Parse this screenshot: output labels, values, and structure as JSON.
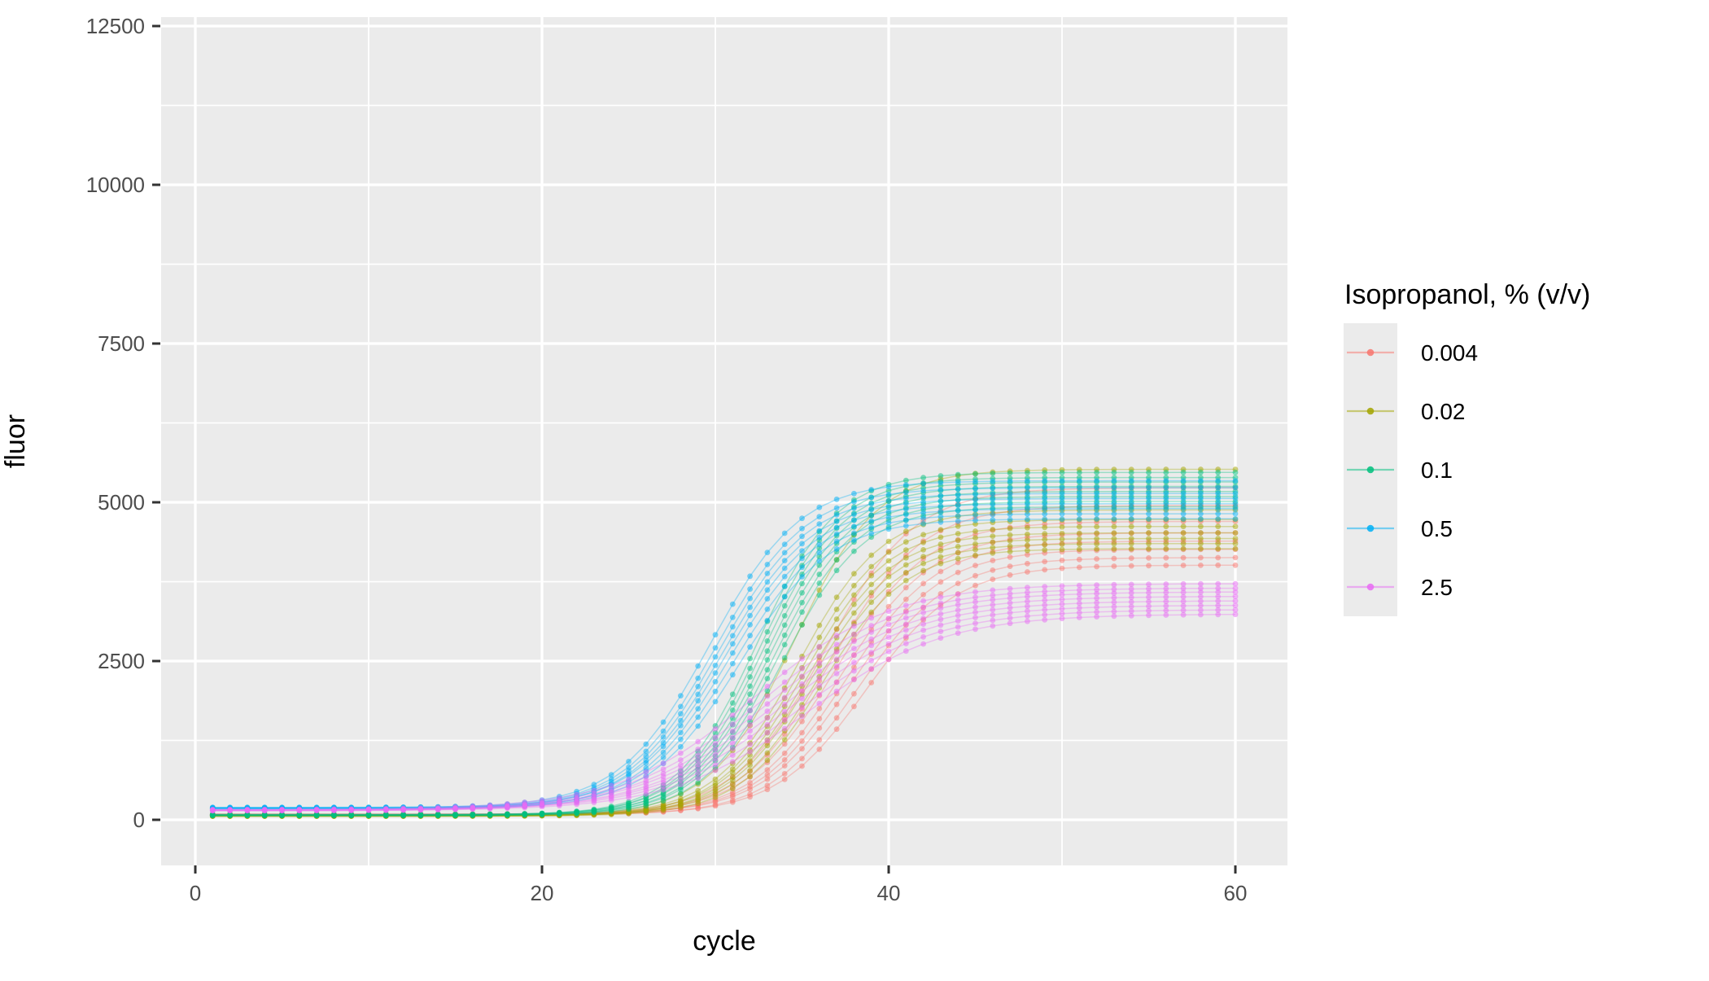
{
  "chart_data": {
    "type": "line",
    "title": "",
    "xlabel": "cycle",
    "ylabel": "fluor",
    "legend_title": "Isopropanol, % (v/v)",
    "legend_position": "right",
    "grid": "white major and minor gridlines on grey panel",
    "panel_color": "#EBEBEB",
    "grid_color": "#FFFFFF",
    "tick_color": "#333333",
    "tick_label_color": "#4D4D4D",
    "x_range": [
      1,
      60
    ],
    "xlim": [
      -1.95,
      62.95
    ],
    "ylim": [
      -700,
      12640
    ],
    "x_ticks": [
      0,
      20,
      40,
      60
    ],
    "x_tick_labels": [
      "0",
      "20",
      "40",
      "60"
    ],
    "y_ticks": [
      0,
      2500,
      5000,
      7500,
      10000,
      12500
    ],
    "y_tick_labels": [
      "0",
      "2500",
      "5000",
      "7500",
      "10000",
      "12500"
    ],
    "marker": "point at every integer cycle 1-60 on each semi-transparent line",
    "series_model": "fluor(cycle) = base + (plateau - base) / (1 + exp(-(cycle - midpoint)/slope))",
    "replicate_format": [
      "midpoint",
      "plateau",
      "base"
    ],
    "groups": [
      {
        "label": "0.004",
        "color": "#F8766D",
        "slope": 2.6,
        "replicates": [
          [
            36.3,
            5230,
            82
          ],
          [
            36.7,
            4950,
            76
          ],
          [
            37.0,
            4700,
            88
          ],
          [
            37.3,
            4520,
            72
          ],
          [
            37.6,
            4390,
            80
          ],
          [
            37.9,
            4260,
            90
          ],
          [
            38.3,
            4130,
            74
          ],
          [
            38.7,
            4010,
            84
          ]
        ]
      },
      {
        "label": "0.02",
        "color": "#A3A500",
        "slope": 2.4,
        "replicates": [
          [
            34.5,
            5520,
            62
          ],
          [
            34.8,
            4880,
            66
          ],
          [
            35.0,
            4730,
            56
          ],
          [
            35.2,
            4620,
            70
          ],
          [
            35.4,
            4520,
            58
          ],
          [
            35.6,
            4430,
            64
          ],
          [
            35.9,
            4350,
            68
          ],
          [
            36.2,
            4270,
            58
          ]
        ]
      },
      {
        "label": "0.1",
        "color": "#00BF7D",
        "slope": 2.3,
        "replicates": [
          [
            32.4,
            5470,
            76
          ],
          [
            32.6,
            5390,
            70
          ],
          [
            32.8,
            5320,
            82
          ],
          [
            33.0,
            5250,
            66
          ],
          [
            33.2,
            5170,
            86
          ],
          [
            33.4,
            5090,
            72
          ],
          [
            33.6,
            5010,
            78
          ],
          [
            33.9,
            4930,
            68
          ]
        ]
      },
      {
        "label": "0.5",
        "color": "#00B0F6",
        "slope": 2.6,
        "replicates": [
          [
            29.7,
            5340,
            192
          ],
          [
            30.0,
            5230,
            186
          ],
          [
            30.2,
            5140,
            181
          ],
          [
            30.4,
            5060,
            176
          ],
          [
            30.6,
            4980,
            196
          ],
          [
            30.8,
            4900,
            171
          ],
          [
            31.1,
            4820,
            189
          ],
          [
            31.4,
            4740,
            179
          ]
        ]
      },
      {
        "label": "2.5",
        "color": "#E76BF3",
        "slope": 3.9,
        "replicates": [
          [
            32.3,
            3720,
            162
          ],
          [
            32.8,
            3650,
            152
          ],
          [
            33.2,
            3590,
            146
          ],
          [
            33.6,
            3520,
            156
          ],
          [
            33.9,
            3450,
            141
          ],
          [
            34.3,
            3380,
            149
          ],
          [
            34.8,
            3310,
            153
          ],
          [
            35.3,
            3240,
            144
          ]
        ]
      }
    ]
  }
}
